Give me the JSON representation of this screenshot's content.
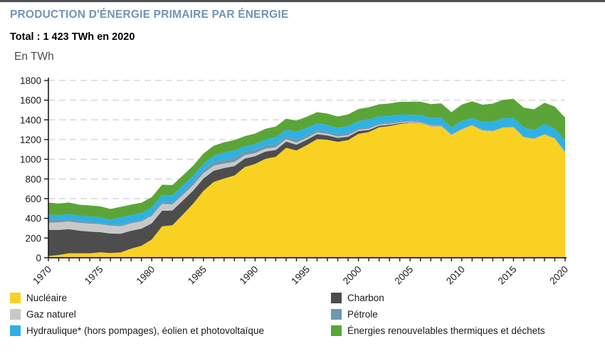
{
  "page": {
    "title": "PRODUCTION D'ÉNERGIE PRIMAIRE PAR ÉNERGIE",
    "subtitle": "Total : 1 423 TWh en 2020",
    "unit_label": "En TWh"
  },
  "colors": {
    "title": "#7295b4",
    "axis_text": "#1a1a1a",
    "axis_line": "#1a1a1a",
    "gridline": "#d8d8d8",
    "top_border": "#4e5256"
  },
  "chart_data": {
    "type": "area",
    "stacked": true,
    "title": "Production d'énergie primaire par énergie",
    "ylabel": "En TWh",
    "xlabel": "",
    "ylim": [
      0,
      1800
    ],
    "grid": "horizontal dashed",
    "legend_position": "bottom, two columns",
    "total_2020_TWh": 1423,
    "x": [
      1970,
      1971,
      1972,
      1973,
      1974,
      1975,
      1976,
      1977,
      1978,
      1979,
      1980,
      1981,
      1982,
      1983,
      1984,
      1985,
      1986,
      1987,
      1988,
      1989,
      1990,
      1991,
      1992,
      1993,
      1994,
      1995,
      1996,
      1997,
      1998,
      1999,
      2000,
      2001,
      2002,
      2003,
      2004,
      2005,
      2006,
      2007,
      2008,
      2009,
      2010,
      2011,
      2012,
      2013,
      2014,
      2015,
      2016,
      2017,
      2018,
      2019,
      2020
    ],
    "x_tick_years": [
      1970,
      1975,
      1980,
      1985,
      1990,
      1995,
      2000,
      2005,
      2010,
      2015,
      2020
    ],
    "y_ticks": [
      0,
      200,
      400,
      600,
      800,
      1000,
      1200,
      1400,
      1600,
      1800
    ],
    "series": [
      {
        "name": "Nucléaire",
        "color": "#f9d123",
        "values": [
          17,
          28,
          45,
          45,
          45,
          55,
          48,
          54,
          92,
          121,
          185,
          319,
          330,
          437,
          549,
          679,
          770,
          804,
          835,
          921,
          952,
          1004,
          1025,
          1116,
          1089,
          1143,
          1204,
          1197,
          1176,
          1195,
          1258,
          1276,
          1324,
          1337,
          1358,
          1368,
          1364,
          1332,
          1332,
          1241,
          1298,
          1341,
          1289,
          1284,
          1321,
          1325,
          1222,
          1207,
          1251,
          1209,
          1072
        ]
      },
      {
        "name": "Charbon",
        "color": "#4d4d4d",
        "values": [
          265,
          255,
          245,
          230,
          220,
          205,
          198,
          190,
          182,
          175,
          165,
          158,
          150,
          143,
          132,
          125,
          114,
          107,
          96,
          86,
          79,
          74,
          69,
          63,
          58,
          54,
          50,
          45,
          40,
          34,
          28,
          21,
          16,
          13,
          8,
          4,
          3,
          2,
          2,
          1,
          1,
          1,
          0,
          0,
          0,
          0,
          0,
          0,
          0,
          0,
          0
        ]
      },
      {
        "name": "Gaz naturel",
        "color": "#c7c8ca",
        "values": [
          74,
          76,
          78,
          80,
          82,
          81,
          79,
          77,
          76,
          75,
          74,
          70,
          62,
          58,
          56,
          54,
          50,
          46,
          41,
          35,
          31,
          29,
          27,
          25,
          23,
          20,
          18,
          17,
          16,
          15,
          14,
          13,
          12,
          11,
          10,
          10,
          9,
          8,
          7,
          6,
          6,
          5,
          4,
          2,
          1,
          1,
          1,
          1,
          1,
          1,
          0
        ]
      },
      {
        "name": "Pétrole",
        "color": "#6d98ad",
        "values": [
          27,
          25,
          23,
          21,
          15,
          12,
          13,
          13,
          14,
          15,
          16,
          18,
          20,
          24,
          28,
          34,
          37,
          39,
          40,
          38,
          35,
          33,
          31,
          29,
          28,
          26,
          24,
          22,
          20,
          18,
          17,
          16,
          15,
          14,
          13,
          13,
          12,
          11,
          10,
          10,
          9,
          9,
          8,
          8,
          7,
          7,
          6,
          6,
          5,
          5,
          4
        ]
      },
      {
        "name": "Hydraulique* (hors pompages), éolien et photovoltaïque",
        "color": "#2eb1e4",
        "values": [
          57,
          48,
          54,
          48,
          57,
          60,
          49,
          76,
          69,
          68,
          70,
          73,
          71,
          70,
          66,
          62,
          63,
          72,
          78,
          49,
          57,
          61,
          71,
          68,
          83,
          76,
          67,
          67,
          65,
          75,
          72,
          79,
          66,
          64,
          65,
          57,
          61,
          65,
          70,
          65,
          76,
          63,
          77,
          89,
          86,
          87,
          93,
          84,
          100,
          95,
          116
        ]
      },
      {
        "name": "Énergies renouvelables thermiques et déchets",
        "color": "#5ba538",
        "values": [
          120,
          118,
          116,
          114,
          112,
          110,
          108,
          107,
          106,
          105,
          105,
          104,
          104,
          103,
          103,
          103,
          104,
          104,
          105,
          105,
          107,
          108,
          109,
          110,
          111,
          113,
          115,
          116,
          117,
          119,
          121,
          123,
          125,
          127,
          129,
          132,
          136,
          141,
          147,
          155,
          165,
          170,
          176,
          182,
          188,
          194,
          201,
          209,
          217,
          224,
          231
        ]
      }
    ],
    "legend_columns": {
      "left": [
        0,
        2,
        4
      ],
      "right": [
        1,
        3,
        5
      ]
    }
  }
}
